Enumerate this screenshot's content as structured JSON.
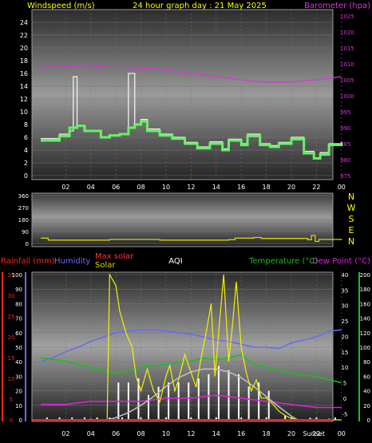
{
  "header": {
    "left": "Windspeed (m/s)",
    "center": "24 hour graph day : 21 May 2025",
    "right": "Barometer (hpa)"
  },
  "colors": {
    "wind_avg": "#66f266",
    "wind_gust": "#f2f2f2",
    "barometer": "#dd33dd",
    "wind_dir": "#d6d600",
    "humidity": "#6a6af2",
    "temperature": "#22bb22",
    "dew_point": "#e020e0",
    "solar": "#f2f200",
    "max_solar": "#bbbbbb",
    "rain": "#ff2020",
    "uv": "#ffffff"
  },
  "legend": {
    "rainfall": "Rainfall (mm)",
    "humidity": "Humidity",
    "max_solar": "Max solar",
    "solar": "Solar",
    "aqi": "AQI",
    "temperature": "Temperature (°C)",
    "dew_point": "Dew Point (°C)"
  },
  "chart_data": [
    {
      "type": "line",
      "x_ticks": [
        "02",
        "04",
        "06",
        "08",
        "10",
        "12",
        "14",
        "16",
        "18",
        "20",
        "22",
        "00"
      ],
      "y_left_ticks": [
        "0",
        "2",
        "4",
        "6",
        "8",
        "10",
        "12",
        "14",
        "16",
        "18",
        "20",
        "22",
        "24"
      ],
      "y_right_ticks": [
        "975",
        "980",
        "985",
        "990",
        "995",
        "1000",
        "1005",
        "1010",
        "1015",
        "1020",
        "1025"
      ],
      "ylim_left": [
        0,
        25
      ],
      "ylim_right": [
        975,
        1025
      ],
      "series": [
        {
          "key": "gust",
          "axis": "left",
          "step": true,
          "x": [
            0,
            1.5,
            2.3,
            2.6,
            2.9,
            3.5,
            4.8,
            5.5,
            6.3,
            7.0,
            7.5,
            8.0,
            8.5,
            9.5,
            10.5,
            11.5,
            12.5,
            13.5,
            14.5,
            15.0,
            16.0,
            16.5,
            17.5,
            18.3,
            19.0,
            20.0,
            21.0,
            21.8,
            22.3,
            23.0,
            24.0
          ],
          "y": [
            5.8,
            6.5,
            7.0,
            15.5,
            7.8,
            7.0,
            6.0,
            6.3,
            6.5,
            16.0,
            8.0,
            8.8,
            7.3,
            6.5,
            6.0,
            5.2,
            4.5,
            5.3,
            4.2,
            5.7,
            5.0,
            6.5,
            5.0,
            4.7,
            5.2,
            6.0,
            3.8,
            2.8,
            3.6,
            5.0,
            5.3
          ]
        },
        {
          "key": "avg",
          "axis": "left",
          "step": true,
          "x": [
            0,
            1.5,
            2.3,
            2.9,
            3.5,
            4.8,
            5.5,
            6.3,
            7.0,
            7.5,
            8.0,
            8.5,
            9.5,
            10.5,
            11.5,
            12.5,
            13.5,
            14.5,
            15.0,
            16.0,
            16.5,
            17.5,
            18.3,
            19.0,
            20.0,
            21.0,
            21.8,
            22.3,
            23.0,
            24.0
          ],
          "y": [
            5.5,
            6.2,
            7.5,
            7.8,
            7.0,
            6.0,
            6.3,
            6.5,
            7.5,
            8.0,
            8.5,
            7.0,
            6.3,
            5.8,
            5.0,
            4.3,
            5.0,
            4.0,
            5.5,
            4.8,
            6.2,
            4.8,
            4.5,
            5.0,
            5.7,
            3.5,
            2.7,
            3.3,
            4.8,
            5.1
          ]
        },
        {
          "key": "baro",
          "axis": "right",
          "step": false,
          "x": [
            0,
            2,
            3.5,
            5,
            7,
            9,
            11,
            13,
            15,
            17,
            18,
            20,
            22,
            24
          ],
          "y": [
            1009,
            1009,
            1009.5,
            1009,
            1008.8,
            1008.5,
            1007.5,
            1006.5,
            1005.5,
            1004.5,
            1004.3,
            1004.3,
            1005,
            1006
          ]
        }
      ]
    },
    {
      "type": "line",
      "y_ticks": [
        "360",
        "270",
        "180",
        "90",
        "0"
      ],
      "y_compass": [
        "N",
        "W",
        "S",
        "E",
        "N"
      ],
      "ylim": [
        0,
        360
      ],
      "series": [
        {
          "key": "dir",
          "step": true,
          "x": [
            0,
            0.6,
            4.8,
            5.5,
            9.5,
            15.0,
            15.5,
            17.0,
            17.6,
            21.3,
            21.6,
            21.9,
            22.2,
            24
          ],
          "y": [
            40,
            25,
            25,
            30,
            25,
            28,
            40,
            45,
            38,
            28,
            60,
            15,
            30,
            25
          ]
        }
      ]
    },
    {
      "type": "line",
      "x_ticks": [
        "02",
        "04",
        "06",
        "08",
        "10",
        "12",
        "14",
        "16",
        "18",
        "20",
        "22",
        "00"
      ],
      "rain_ticks": [
        "0",
        "5",
        "10",
        "15",
        "20",
        "25",
        "30",
        "35"
      ],
      "humidity_ticks": [
        "0",
        "10",
        "20",
        "30",
        "40",
        "50",
        "60",
        "70",
        "80",
        "90",
        "100"
      ],
      "temp_ticks": [
        "-5",
        "0",
        "5",
        "10",
        "15",
        "20",
        "25",
        "30",
        "35",
        "40"
      ],
      "solar_ticks": [
        "0",
        "20",
        "40",
        "60",
        "80",
        "100",
        "120",
        "140",
        "160",
        "180",
        "200"
      ],
      "ylim_rain": [
        0,
        35
      ],
      "ylim_humidity": [
        0,
        100
      ],
      "ylim_temp": [
        -7,
        40
      ],
      "ylim_solar": [
        0,
        200
      ],
      "xlabels_extra": [
        "Sunset"
      ],
      "series": [
        {
          "key": "humidity",
          "axis": "humidity",
          "x": [
            0,
            1,
            2,
            3,
            4,
            5,
            6,
            7,
            8,
            9,
            10,
            11,
            12,
            13,
            14,
            15,
            16,
            17,
            18,
            19,
            20,
            21,
            22,
            23,
            24
          ],
          "y": [
            40,
            43,
            47,
            50,
            54,
            57,
            60,
            61,
            62,
            62,
            61,
            60,
            59,
            57,
            55,
            54,
            52,
            50,
            50,
            49,
            53,
            55,
            57,
            61,
            62
          ]
        },
        {
          "key": "temperature",
          "axis": "temp",
          "x": [
            0,
            2,
            4,
            6,
            7,
            8,
            10,
            12,
            13,
            14,
            15,
            16,
            17,
            18,
            19,
            20,
            22,
            24
          ],
          "y": [
            13,
            12,
            10,
            8,
            9,
            10,
            11,
            12,
            13,
            12.5,
            13,
            14,
            11,
            10,
            9,
            8,
            7,
            5
          ]
        },
        {
          "key": "dew",
          "axis": "temp",
          "x": [
            0,
            2,
            4,
            6,
            8,
            10,
            12,
            14,
            15,
            16,
            18,
            20,
            22,
            24
          ],
          "y": [
            -2,
            -2,
            -1,
            -1,
            -1,
            0,
            0,
            1,
            0.5,
            0,
            -1,
            -2,
            -3,
            -3
          ]
        },
        {
          "key": "max_solar",
          "axis": "solar",
          "x": [
            5.3,
            6,
            7,
            8,
            9,
            10,
            11,
            12,
            13,
            14,
            15,
            16,
            17,
            18,
            19,
            20,
            20.5
          ],
          "y": [
            0,
            3,
            10,
            20,
            32,
            46,
            58,
            66,
            70,
            70,
            66,
            58,
            46,
            32,
            18,
            5,
            0
          ]
        },
        {
          "key": "solar",
          "axis": "solar",
          "x": [
            0,
            5.3,
            5.5,
            6.0,
            6.3,
            6.8,
            7.3,
            7.6,
            8.0,
            8.5,
            9.0,
            9.5,
            10.0,
            10.3,
            10.7,
            11.0,
            11.5,
            12.0,
            12.4,
            12.8,
            13.2,
            13.6,
            13.9,
            14.3,
            14.6,
            15.0,
            15.3,
            15.6,
            16.0,
            16.4,
            16.8,
            17.2,
            17.6,
            18.0,
            18.5,
            19.0,
            19.5,
            20.0,
            20.5,
            24
          ],
          "y": [
            0,
            0,
            200,
            185,
            150,
            120,
            100,
            60,
            40,
            70,
            40,
            25,
            60,
            75,
            40,
            55,
            90,
            65,
            45,
            85,
            120,
            160,
            60,
            140,
            200,
            80,
            130,
            190,
            100,
            65,
            40,
            55,
            30,
            30,
            22,
            12,
            6,
            2,
            0,
            0
          ]
        }
      ],
      "rain_bars": {
        "x": [
          2,
          4,
          6.2,
          7,
          7.8,
          8.6,
          9.4,
          10.2,
          11,
          11.8,
          12.6,
          13.4,
          14.2,
          15,
          15.8,
          16.6,
          17.4,
          18.2,
          19.5,
          21.5,
          23
        ],
        "h": [
          0.2,
          0.3,
          9,
          9,
          10,
          6,
          8,
          9,
          9,
          9,
          10,
          11,
          13,
          12,
          11,
          8,
          9,
          7,
          1,
          0.5,
          0.3
        ]
      },
      "aqi_points": {
        "x": [
          0.5,
          1.5,
          2.5,
          3.5,
          4.5,
          5.5,
          6.5,
          8,
          10,
          12,
          14,
          16,
          18,
          20,
          22,
          23.5
        ],
        "y": [
          1,
          1,
          1,
          1,
          1,
          1,
          1,
          1,
          1,
          1,
          1,
          1,
          1,
          1,
          1,
          1
        ]
      }
    }
  ]
}
